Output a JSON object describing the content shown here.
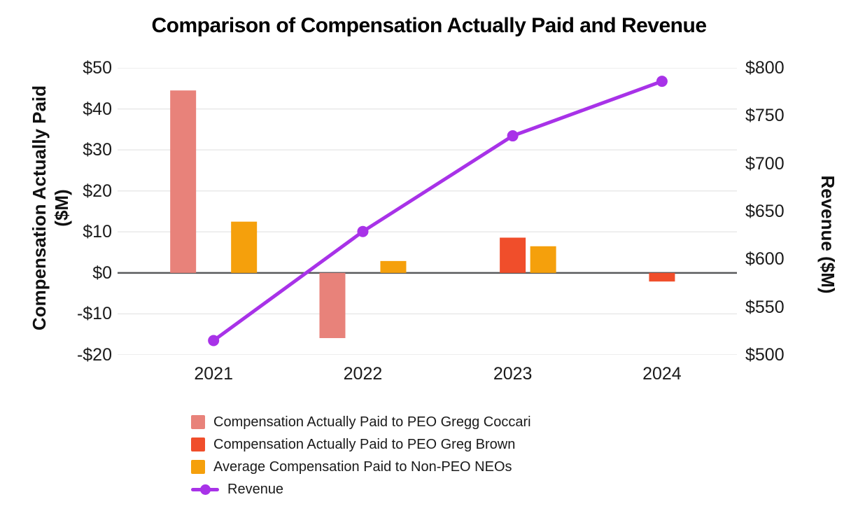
{
  "chart_data": {
    "type": "bar+line combo",
    "title": "Comparison of Compensation Actually Paid and Revenue",
    "categories": [
      "2021",
      "2022",
      "2023",
      "2024"
    ],
    "series": [
      {
        "name": "Compensation Actually Paid to PEO Gregg Coccari",
        "type": "bar",
        "yaxis": "left",
        "color": "#E8827A",
        "values": [
          44.5,
          -15.9,
          null,
          null
        ]
      },
      {
        "name": "Compensation Actually Paid to PEO Greg Brown",
        "type": "bar",
        "yaxis": "left",
        "color": "#F04E2B",
        "values": [
          null,
          null,
          8.6,
          -2.1
        ]
      },
      {
        "name": "Average Compensation Paid to Non-PEO NEOs",
        "type": "bar",
        "yaxis": "left",
        "color": "#F5A00C",
        "values": [
          12.5,
          2.9,
          6.5,
          null
        ]
      },
      {
        "name": "Revenue",
        "type": "line",
        "yaxis": "right",
        "color": "#A832E8",
        "values": [
          515,
          629,
          729,
          786
        ]
      }
    ],
    "left_axis": {
      "label": "Compensation Actually Paid",
      "label_line2": "($M)",
      "ylim": [
        -20,
        50
      ],
      "ticks": [
        "$50",
        "$40",
        "$30",
        "$20",
        "$10",
        "$0",
        "-$10",
        "-$20"
      ],
      "tick_values": [
        50,
        40,
        30,
        20,
        10,
        0,
        -10,
        -20
      ]
    },
    "right_axis": {
      "label": "Revenue ($M)",
      "ylim": [
        500,
        800
      ],
      "ticks": [
        "$800",
        "$750",
        "$700",
        "$650",
        "$600",
        "$550",
        "$500"
      ],
      "tick_values": [
        800,
        750,
        700,
        650,
        600,
        550,
        500
      ]
    },
    "grid": true,
    "zero_line": true,
    "legend_position": "bottom-left"
  },
  "colors": {
    "background": "#ffffff",
    "grid": "#e9e9e9",
    "zero_line": "#58595b",
    "text": "#1a1a1a",
    "title": "#000000"
  }
}
